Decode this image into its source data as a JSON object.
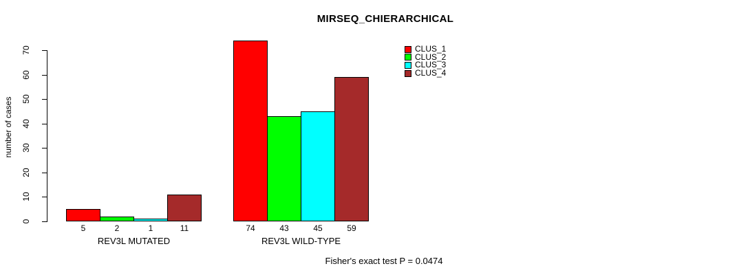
{
  "chart_data": {
    "type": "bar",
    "title": "MIRSEQ_CHIERARCHICAL",
    "ylabel": "number of cases",
    "xlabel": "",
    "ylim": [
      0,
      70
    ],
    "yticks": [
      0,
      10,
      20,
      30,
      40,
      50,
      60,
      70
    ],
    "grid": false,
    "legend_position": "top-right",
    "bar_value_labels_shown": true,
    "groups": [
      "REV3L MUTATED",
      "REV3L WILD-TYPE"
    ],
    "series": [
      {
        "name": "CLUS_1",
        "color": "#ff0000",
        "values": [
          5,
          74
        ]
      },
      {
        "name": "CLUS_2",
        "color": "#00ff00",
        "values": [
          2,
          43
        ]
      },
      {
        "name": "CLUS_3",
        "color": "#00ffff",
        "values": [
          1,
          45
        ]
      },
      {
        "name": "CLUS_4",
        "color": "#a52a2a",
        "values": [
          11,
          59
        ]
      }
    ],
    "annotation": "Fisher's exact test P = 0.0474"
  }
}
